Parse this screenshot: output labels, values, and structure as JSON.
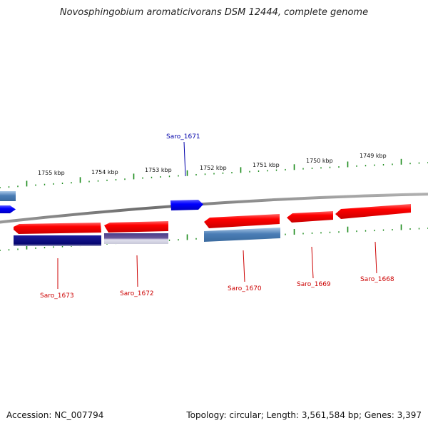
{
  "title": "Novosphingobium aromaticivorans DSM 12444, complete genome",
  "footer": {
    "accession": "Accession: NC_007794",
    "summary": "Topology: circular; Length: 3,561,584 bp; Genes: 3,397"
  },
  "kbp_labels": [
    "1755 kbp",
    "1754 kbp",
    "1753 kbp",
    "1752 kbp",
    "1751 kbp",
    "1750 kbp",
    "1749 kbp"
  ],
  "genes": [
    {
      "name": "Saro_1671",
      "color": "#0000aa"
    },
    {
      "name": "Saro_1673",
      "color": "#cc0000"
    },
    {
      "name": "Saro_1672",
      "color": "#cc0000"
    },
    {
      "name": "Saro_1670",
      "color": "#cc0000"
    },
    {
      "name": "Saro_1669",
      "color": "#cc0000"
    },
    {
      "name": "Saro_1668",
      "color": "#cc0000"
    }
  ],
  "colors": {
    "backbone": "#808080",
    "ticks": "#1a8a1a",
    "gene_red": "#ff0000",
    "gene_blue": "#0000ff",
    "gene_steel": "#4a7db5",
    "gene_navy": "#0a0a80",
    "gene_purple": "#5a4a90"
  }
}
